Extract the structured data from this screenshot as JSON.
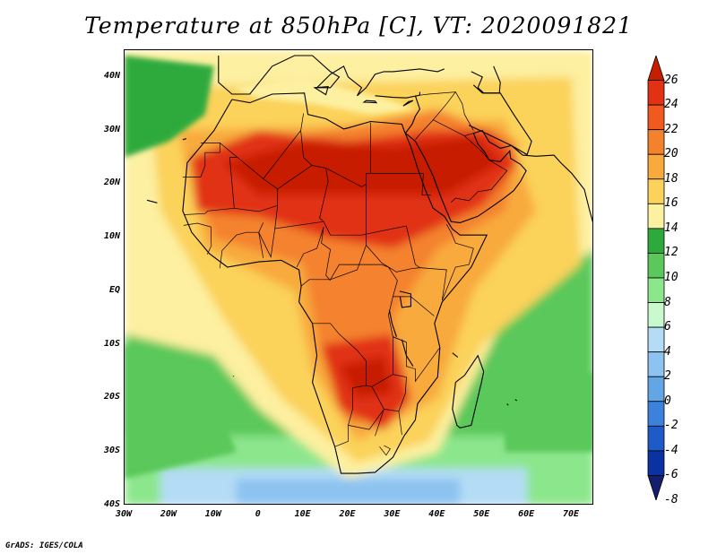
{
  "title": "Temperature at 850hPa [C], VT: 2020091821",
  "credit": "GrADS: IGES/COLA",
  "lat_labels": [
    "40N",
    "30N",
    "20N",
    "10N",
    "EQ",
    "10S",
    "20S",
    "30S",
    "40S"
  ],
  "lat_values": [
    40,
    30,
    20,
    10,
    0,
    -10,
    -20,
    -30,
    -40
  ],
  "lon_labels": [
    "30W",
    "20W",
    "10W",
    "0",
    "10E",
    "20E",
    "30E",
    "40E",
    "50E",
    "60E",
    "70E"
  ],
  "lon_values": [
    -30,
    -20,
    -10,
    0,
    10,
    20,
    30,
    40,
    50,
    60,
    70
  ],
  "map_extent": {
    "lon_min": -30,
    "lon_max": 75,
    "lat_min": -40,
    "lat_max": 45
  },
  "colorbar": {
    "levels": [
      "26",
      "24",
      "22",
      "20",
      "18",
      "16",
      "14",
      "12",
      "10",
      "8",
      "6",
      "4",
      "2",
      "0",
      "-2",
      "-4",
      "-6",
      "-8"
    ],
    "colors": [
      "#c81e00",
      "#e13214",
      "#f05a1e",
      "#f4822d",
      "#f8aa3c",
      "#fbd25a",
      "#fdf0a0",
      "#2eaa3c",
      "#5ac85a",
      "#8ce68c",
      "#c8facd",
      "#b4dcf5",
      "#8cc3f0",
      "#64a5e6",
      "#3c82dc",
      "#1e5ac8",
      "#0a32a0",
      "#141e6e"
    ]
  },
  "landmarks": {
    "sahara_max": 26,
    "arabia_max": 26,
    "zambezi_basin": 25,
    "kalahari": 22,
    "sahel": 20,
    "equatorial_africa": 18,
    "madagascar": 18,
    "south_atlantic": 14,
    "indian_ocean": 16,
    "southern_ocean": 6,
    "mediterranean": 14,
    "arabian_sea": 18
  }
}
